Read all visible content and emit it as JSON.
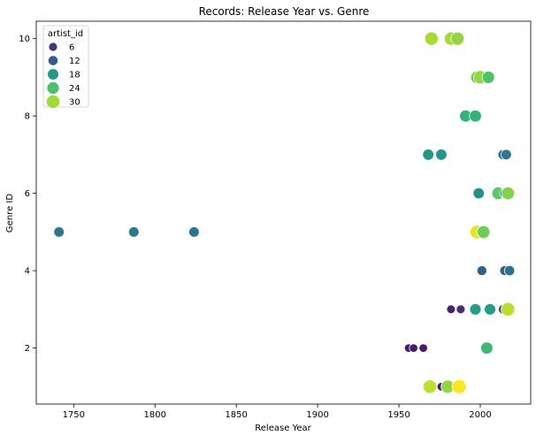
{
  "chart_data": {
    "type": "scatter",
    "title": "Records: Release Year vs. Genre",
    "xlabel": "Release Year",
    "ylabel": "Genre ID",
    "xlim": [
      1727,
      2031
    ],
    "ylim": [
      0.55,
      10.45
    ],
    "xticks": [
      1750,
      1800,
      1850,
      1900,
      1950,
      2000
    ],
    "yticks": [
      2,
      4,
      6,
      8,
      10
    ],
    "grid": false,
    "legend": {
      "title": "artist_id",
      "placement": "top-left",
      "entries": [
        {
          "label": "6",
          "artist_id": 6,
          "color": "#46327e"
        },
        {
          "label": "12",
          "artist_id": 12,
          "color": "#365c8d"
        },
        {
          "label": "18",
          "artist_id": 18,
          "color": "#1f9a8a"
        },
        {
          "label": "24",
          "artist_id": 24,
          "color": "#4ac16d"
        },
        {
          "label": "30",
          "artist_id": 30,
          "color": "#a0da39"
        }
      ]
    },
    "hue_range": [
      1,
      33
    ],
    "points": [
      {
        "x": 1741,
        "y": 5,
        "artist_id": 14
      },
      {
        "x": 1787,
        "y": 5,
        "artist_id": 14
      },
      {
        "x": 1824,
        "y": 5,
        "artist_id": 14
      },
      {
        "x": 1956,
        "y": 2,
        "artist_id": 4
      },
      {
        "x": 1959,
        "y": 2,
        "artist_id": 4
      },
      {
        "x": 1965,
        "y": 2,
        "artist_id": 4
      },
      {
        "x": 2004,
        "y": 2,
        "artist_id": 23
      },
      {
        "x": 1976,
        "y": 1,
        "artist_id": 4
      },
      {
        "x": 1969,
        "y": 1,
        "artist_id": 30
      },
      {
        "x": 1980,
        "y": 1,
        "artist_id": 28
      },
      {
        "x": 1987,
        "y": 1,
        "artist_id": 33
      },
      {
        "x": 1982,
        "y": 3,
        "artist_id": 5
      },
      {
        "x": 1988,
        "y": 3,
        "artist_id": 6
      },
      {
        "x": 1997,
        "y": 3,
        "artist_id": 19
      },
      {
        "x": 2006,
        "y": 3,
        "artist_id": 19
      },
      {
        "x": 2014,
        "y": 3,
        "artist_id": 8
      },
      {
        "x": 2017,
        "y": 3,
        "artist_id": 30
      },
      {
        "x": 2001,
        "y": 4,
        "artist_id": 11
      },
      {
        "x": 2015,
        "y": 4,
        "artist_id": 11
      },
      {
        "x": 2018,
        "y": 4,
        "artist_id": 13
      },
      {
        "x": 1998,
        "y": 5,
        "artist_id": 32
      },
      {
        "x": 2002,
        "y": 5,
        "artist_id": 26
      },
      {
        "x": 1999,
        "y": 6,
        "artist_id": 17
      },
      {
        "x": 2011,
        "y": 6,
        "artist_id": 25
      },
      {
        "x": 2015,
        "y": 6,
        "artist_id": 11
      },
      {
        "x": 2017,
        "y": 6,
        "artist_id": 27
      },
      {
        "x": 1968,
        "y": 7,
        "artist_id": 18
      },
      {
        "x": 1976,
        "y": 7,
        "artist_id": 18
      },
      {
        "x": 2014,
        "y": 7,
        "artist_id": 12
      },
      {
        "x": 2016,
        "y": 7,
        "artist_id": 14
      },
      {
        "x": 1991,
        "y": 8,
        "artist_id": 22
      },
      {
        "x": 1997,
        "y": 8,
        "artist_id": 22
      },
      {
        "x": 1998,
        "y": 9,
        "artist_id": 26
      },
      {
        "x": 2000,
        "y": 9,
        "artist_id": 28
      },
      {
        "x": 2005,
        "y": 9,
        "artist_id": 24
      },
      {
        "x": 1970,
        "y": 10,
        "artist_id": 29
      },
      {
        "x": 1982,
        "y": 10,
        "artist_id": 29
      },
      {
        "x": 1986,
        "y": 10,
        "artist_id": 28
      }
    ]
  }
}
